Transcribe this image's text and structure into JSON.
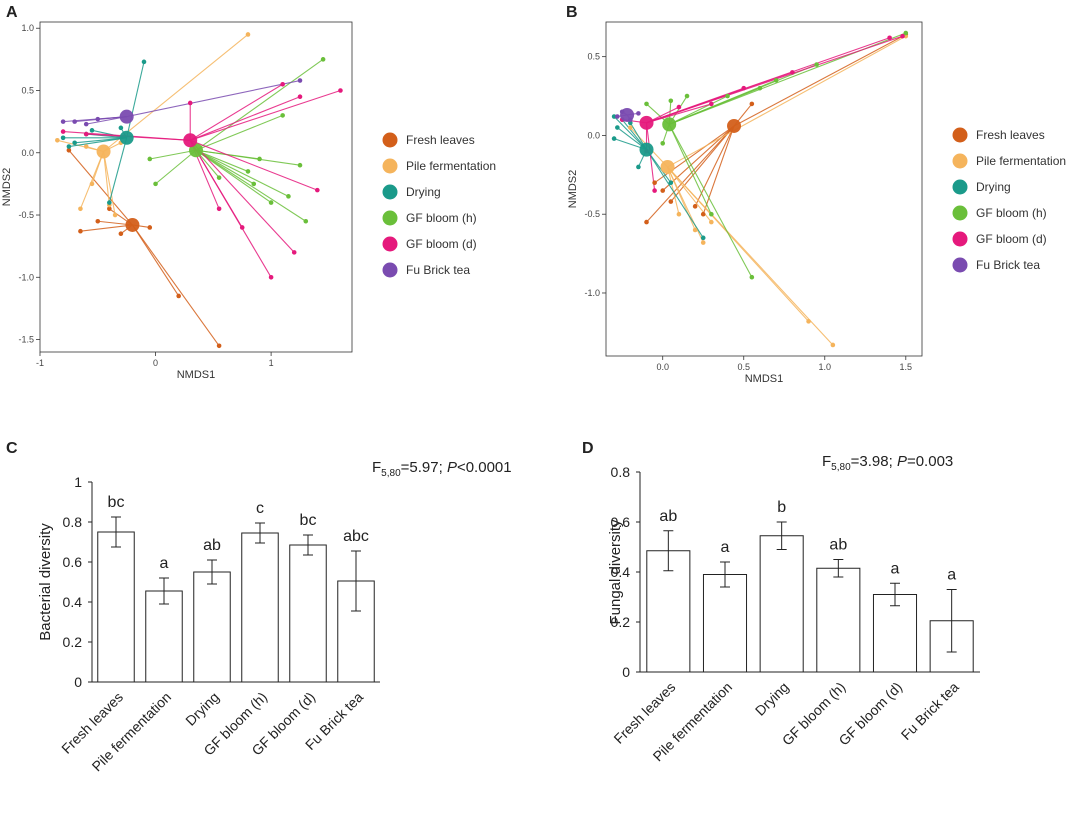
{
  "panel_labels": [
    "A",
    "B",
    "C",
    "D"
  ],
  "colors": {
    "Fresh leaves": "#d35f1a",
    "Pile fermentation": "#f5b45c",
    "Drying": "#1a9a8a",
    "GF bloom (h)": "#6abf3a",
    "GF bloom (d)": "#e5197c",
    "Fu Brick tea": "#7a4bb0"
  },
  "chart_data": [
    {
      "id": "A",
      "type": "scatter",
      "title": "",
      "xlabel": "NMDS1",
      "ylabel": "NMDS2",
      "xlim": [
        -1,
        1.7
      ],
      "ylim": [
        -1.6,
        1.05
      ],
      "xticks": [
        -1,
        0,
        1
      ],
      "xtick_labels": [
        "-1",
        "0",
        "1"
      ],
      "yticks": [
        1.0,
        0.5,
        0.0,
        -0.5,
        -1.0,
        -1.5
      ],
      "ytick_labels": [
        "1.0",
        "0.5",
        "0.0",
        "-0.5",
        "-1.0",
        "-1.5"
      ],
      "legend": [
        "Fresh leaves",
        "Pile fermentation",
        "Drying",
        "GF bloom (h)",
        "GF bloom (d)",
        "Fu Brick tea"
      ],
      "groups": [
        {
          "name": "Fresh leaves",
          "centroid": [
            -0.2,
            -0.58
          ],
          "points": [
            [
              -0.65,
              -0.63
            ],
            [
              -0.5,
              -0.55
            ],
            [
              -0.3,
              -0.65
            ],
            [
              0.2,
              -1.15
            ],
            [
              0.55,
              -1.55
            ],
            [
              -0.05,
              -0.6
            ],
            [
              -0.75,
              0.02
            ],
            [
              -0.4,
              -0.45
            ]
          ]
        },
        {
          "name": "Pile fermentation",
          "centroid": [
            -0.45,
            0.01
          ],
          "points": [
            [
              -0.65,
              -0.45
            ],
            [
              -0.55,
              -0.25
            ],
            [
              -0.35,
              -0.5
            ],
            [
              -0.4,
              -0.42
            ],
            [
              -0.85,
              0.1
            ],
            [
              0.8,
              0.95
            ],
            [
              -0.6,
              0.05
            ],
            [
              -0.3,
              0.08
            ]
          ]
        },
        {
          "name": "Drying",
          "centroid": [
            -0.25,
            0.12
          ],
          "points": [
            [
              -0.1,
              0.73
            ],
            [
              -0.4,
              -0.4
            ],
            [
              -0.75,
              0.05
            ],
            [
              -0.6,
              0.15
            ],
            [
              -0.8,
              0.12
            ],
            [
              -0.55,
              0.18
            ],
            [
              -0.7,
              0.08
            ],
            [
              -0.3,
              0.2
            ]
          ]
        },
        {
          "name": "GF bloom (h)",
          "centroid": [
            0.35,
            0.02
          ],
          "points": [
            [
              1.45,
              0.75
            ],
            [
              1.1,
              0.3
            ],
            [
              1.25,
              -0.1
            ],
            [
              1.15,
              -0.35
            ],
            [
              1.0,
              -0.4
            ],
            [
              0.85,
              -0.25
            ],
            [
              -0.05,
              -0.05
            ],
            [
              0.0,
              -0.25
            ],
            [
              0.55,
              -0.2
            ],
            [
              0.8,
              -0.15
            ],
            [
              1.3,
              -0.55
            ],
            [
              0.9,
              -0.05
            ]
          ]
        },
        {
          "name": "GF bloom (d)",
          "centroid": [
            0.3,
            0.1
          ],
          "points": [
            [
              1.6,
              0.5
            ],
            [
              1.25,
              0.45
            ],
            [
              1.2,
              -0.8
            ],
            [
              1.0,
              -1.0
            ],
            [
              0.75,
              -0.6
            ],
            [
              0.55,
              -0.45
            ],
            [
              1.1,
              0.55
            ],
            [
              1.4,
              -0.3
            ],
            [
              -0.8,
              0.17
            ],
            [
              -0.6,
              0.15
            ],
            [
              0.3,
              0.4
            ]
          ]
        },
        {
          "name": "Fu Brick tea",
          "centroid": [
            -0.25,
            0.29
          ],
          "points": [
            [
              -0.8,
              0.25
            ],
            [
              -0.7,
              0.25
            ],
            [
              -0.6,
              0.23
            ],
            [
              1.25,
              0.58
            ],
            [
              -0.5,
              0.27
            ]
          ]
        }
      ]
    },
    {
      "id": "B",
      "type": "scatter",
      "title": "",
      "xlabel": "NMDS1",
      "ylabel": "NMDS2",
      "xlim": [
        -0.35,
        1.6
      ],
      "ylim": [
        -1.4,
        0.72
      ],
      "xticks": [
        0.0,
        0.5,
        1.0,
        1.5
      ],
      "xtick_labels": [
        "0.0",
        "0.5",
        "1.0",
        "1.5"
      ],
      "yticks": [
        0.5,
        0.0,
        -0.5,
        -1.0
      ],
      "ytick_labels": [
        "0.5",
        "0.0",
        "-0.5",
        "-1.0"
      ],
      "legend": [
        "Fresh leaves",
        "Pile fermentation",
        "Drying",
        "GF bloom (h)",
        "GF bloom (d)",
        "Fu Brick tea"
      ],
      "groups": [
        {
          "name": "Fresh leaves",
          "centroid": [
            0.44,
            0.06
          ],
          "points": [
            [
              1.5,
              0.64
            ],
            [
              0.55,
              0.2
            ],
            [
              0.0,
              -0.35
            ],
            [
              -0.1,
              -0.55
            ],
            [
              0.05,
              -0.42
            ],
            [
              0.2,
              -0.45
            ],
            [
              0.25,
              -0.5
            ],
            [
              -0.05,
              -0.3
            ]
          ]
        },
        {
          "name": "Pile fermentation",
          "centroid": [
            0.03,
            -0.2
          ],
          "points": [
            [
              1.05,
              -1.33
            ],
            [
              0.9,
              -1.18
            ],
            [
              0.25,
              -0.68
            ],
            [
              0.3,
              -0.55
            ],
            [
              0.2,
              -0.6
            ],
            [
              0.1,
              -0.5
            ],
            [
              -0.2,
              0.05
            ],
            [
              1.5,
              0.63
            ]
          ]
        },
        {
          "name": "Drying",
          "centroid": [
            -0.1,
            -0.09
          ],
          "points": [
            [
              -0.28,
              0.05
            ],
            [
              -0.3,
              -0.02
            ],
            [
              -0.25,
              0.1
            ],
            [
              0.25,
              -0.65
            ],
            [
              0.05,
              -0.3
            ],
            [
              -0.15,
              -0.2
            ],
            [
              -0.2,
              0.08
            ],
            [
              -0.3,
              0.12
            ]
          ]
        },
        {
          "name": "GF bloom (h)",
          "centroid": [
            0.04,
            0.07
          ],
          "points": [
            [
              0.55,
              -0.9
            ],
            [
              0.3,
              -0.5
            ],
            [
              0.95,
              0.45
            ],
            [
              0.7,
              0.35
            ],
            [
              0.15,
              0.25
            ],
            [
              0.05,
              0.22
            ],
            [
              -0.1,
              0.2
            ],
            [
              0.4,
              0.25
            ],
            [
              0.6,
              0.3
            ],
            [
              0.0,
              -0.05
            ],
            [
              1.5,
              0.65
            ]
          ]
        },
        {
          "name": "GF bloom (d)",
          "centroid": [
            -0.1,
            0.08
          ],
          "points": [
            [
              1.48,
              0.63
            ],
            [
              1.4,
              0.62
            ],
            [
              0.8,
              0.4
            ],
            [
              0.5,
              0.3
            ],
            [
              -0.05,
              -0.35
            ],
            [
              -0.1,
              -0.1
            ],
            [
              0.1,
              0.18
            ],
            [
              -0.25,
              0.1
            ],
            [
              0.3,
              0.2
            ]
          ]
        },
        {
          "name": "Fu Brick tea",
          "centroid": [
            -0.22,
            0.13
          ],
          "points": [
            [
              -0.28,
              0.12
            ],
            [
              -0.25,
              0.15
            ],
            [
              -0.2,
              0.1
            ],
            [
              -0.15,
              0.14
            ]
          ]
        }
      ]
    },
    {
      "id": "C",
      "type": "bar",
      "title": "",
      "xlabel": "",
      "ylabel": "Bacterial diversity",
      "ylim": [
        0,
        1
      ],
      "yticks": [
        0,
        0.2,
        0.4,
        0.6,
        0.8,
        1
      ],
      "ytick_labels": [
        "0",
        "0.2",
        "0.4",
        "0.6",
        "0.8",
        "1"
      ],
      "categories": [
        "Fresh leaves",
        "Pile fermentation",
        "Drying",
        "GF bloom (h)",
        "GF bloom (d)",
        "Fu Brick tea"
      ],
      "values": [
        0.75,
        0.455,
        0.55,
        0.745,
        0.685,
        0.505
      ],
      "errors": [
        0.075,
        0.065,
        0.06,
        0.05,
        0.05,
        0.15
      ],
      "letters": [
        "bc",
        "a",
        "ab",
        "c",
        "bc",
        "abc"
      ],
      "stat": {
        "prefix": "F",
        "sub": "5,80",
        "mid": "=5.97; ",
        "p_label": "P",
        "p_text": "<0.0001"
      }
    },
    {
      "id": "D",
      "type": "bar",
      "title": "",
      "xlabel": "",
      "ylabel": "Fungal diversity",
      "ylim": [
        0,
        0.8
      ],
      "yticks": [
        0,
        0.2,
        0.4,
        0.6,
        0.8
      ],
      "ytick_labels": [
        "0",
        "0.2",
        "0.4",
        "0.6",
        "0.8"
      ],
      "categories": [
        "Fresh leaves",
        "Pile fermentation",
        "Drying",
        "GF bloom (h)",
        "GF bloom (d)",
        "Fu Brick tea"
      ],
      "values": [
        0.485,
        0.39,
        0.545,
        0.415,
        0.31,
        0.205
      ],
      "errors": [
        0.08,
        0.05,
        0.055,
        0.035,
        0.045,
        0.125
      ],
      "letters": [
        "ab",
        "a",
        "b",
        "ab",
        "a",
        "a"
      ],
      "stat": {
        "prefix": "F",
        "sub": "5,80",
        "mid": "=3.98; ",
        "p_label": "P",
        "p_text": "=0.003"
      }
    }
  ]
}
